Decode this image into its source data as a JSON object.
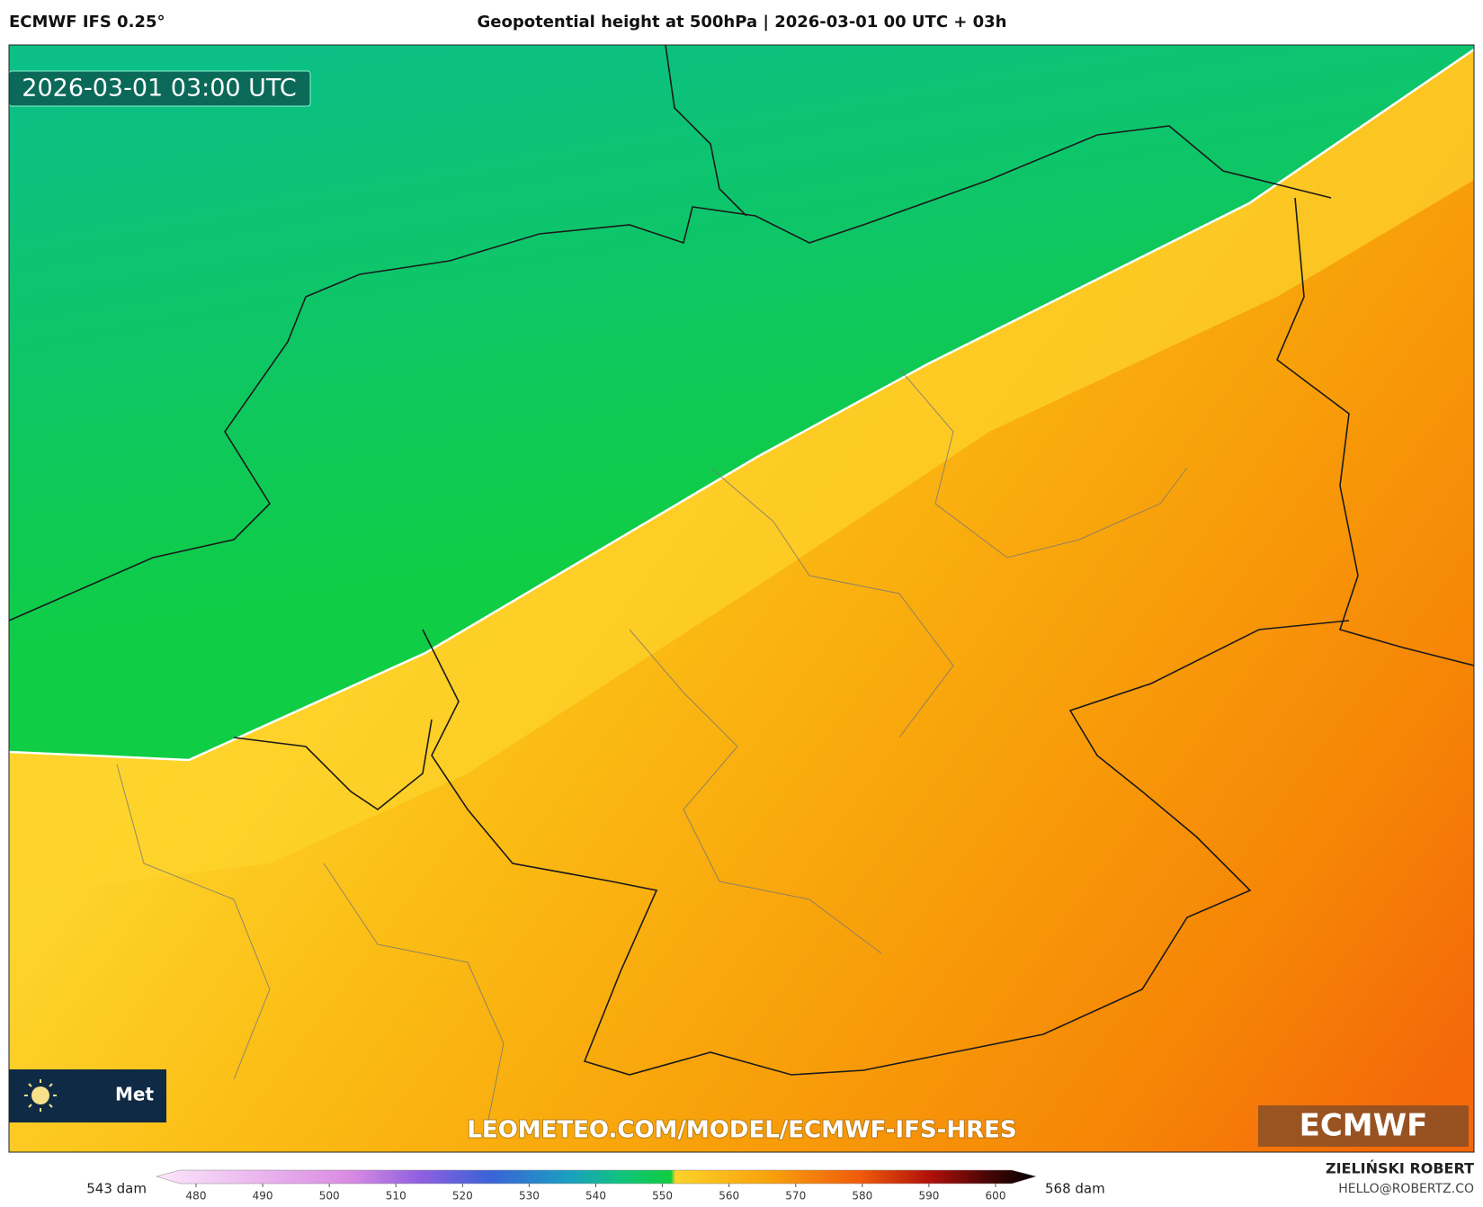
{
  "header": {
    "model": "ECMWF IFS 0.25°",
    "title": "Geopotential height at 500hPa | 2026-03-01 00 UTC + 03h"
  },
  "map": {
    "timestamp": "2026-03-01 03:00 UTC",
    "badge": "Met",
    "watermark": "LEOMETEO.COM/MODEL/ECMWF-IFS-HRES",
    "logo": "ECMWF"
  },
  "colorbar": {
    "min_label": "543 dam",
    "max_label": "568 dam",
    "ticks": [
      480,
      490,
      500,
      510,
      520,
      530,
      540,
      550,
      560,
      570,
      580,
      590,
      600
    ]
  },
  "footer": {
    "author": "ZIELIŃSKI ROBERT",
    "email": "HELLO@ROBERTZ.CO"
  }
}
